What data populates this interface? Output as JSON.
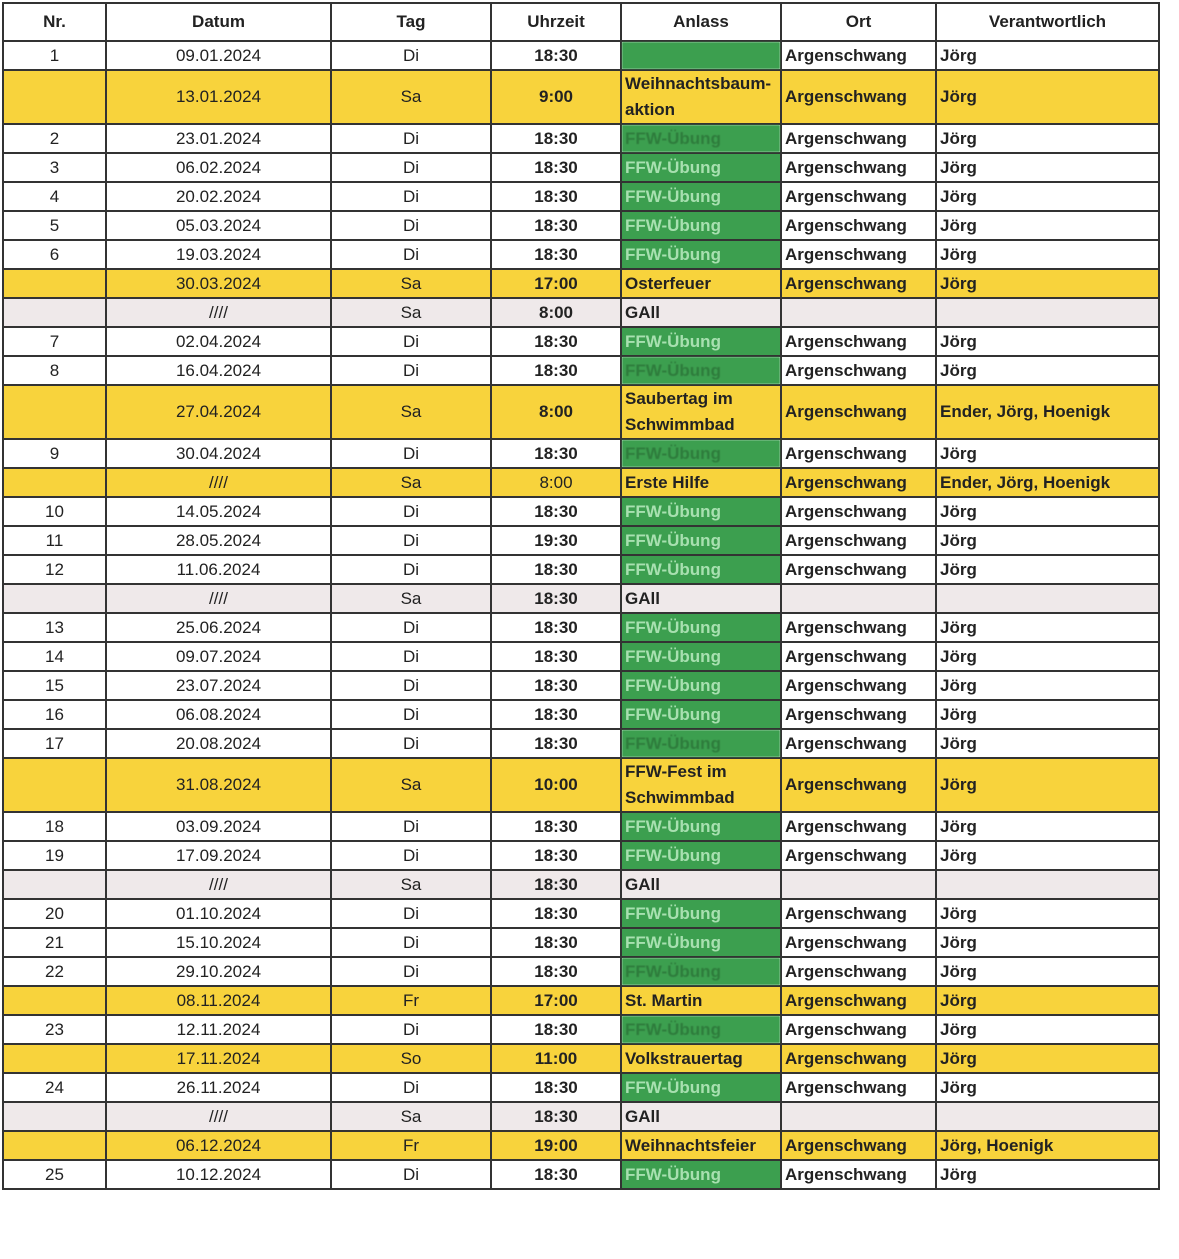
{
  "headers": [
    "Nr.",
    "Datum",
    "Tag",
    "Uhrzeit",
    "Anlass",
    "Ort",
    "Verantwortlich"
  ],
  "colors": {
    "yellow": "#f8d33c",
    "green": "#3c9f4f",
    "grey": "#efe9ea"
  },
  "rows": [
    {
      "nr": "1",
      "datum": "09.01.2024",
      "tag": "Di",
      "zeit": "18:30",
      "anlass": "",
      "ort": "Argenschwang",
      "ver": "Jörg",
      "type": "green",
      "blur": true
    },
    {
      "nr": "",
      "datum": "13.01.2024",
      "tag": "Sa",
      "zeit": "9:00",
      "anlass": "Weihnachtsbaum- aktion",
      "ort": "Argenschwang",
      "ver": "Jörg",
      "type": "yellow",
      "tall": true
    },
    {
      "nr": "2",
      "datum": "23.01.2024",
      "tag": "Di",
      "zeit": "18:30",
      "anlass": "FFW-Übung",
      "ort": "Argenschwang",
      "ver": "Jörg",
      "type": "green",
      "blur": true
    },
    {
      "nr": "3",
      "datum": "06.02.2024",
      "tag": "Di",
      "zeit": "18:30",
      "anlass": "FFW-Übung",
      "ort": "Argenschwang",
      "ver": "Jörg",
      "type": "green"
    },
    {
      "nr": "4",
      "datum": "20.02.2024",
      "tag": "Di",
      "zeit": "18:30",
      "anlass": "FFW-Übung",
      "ort": "Argenschwang",
      "ver": "Jörg",
      "type": "green"
    },
    {
      "nr": "5",
      "datum": "05.03.2024",
      "tag": "Di",
      "zeit": "18:30",
      "anlass": "FFW-Übung",
      "ort": "Argenschwang",
      "ver": "Jörg",
      "type": "green"
    },
    {
      "nr": "6",
      "datum": "19.03.2024",
      "tag": "Di",
      "zeit": "18:30",
      "anlass": "FFW-Übung",
      "ort": "Argenschwang",
      "ver": "Jörg",
      "type": "green"
    },
    {
      "nr": "",
      "datum": "30.03.2024",
      "tag": "Sa",
      "zeit": "17:00",
      "anlass": "Osterfeuer",
      "ort": "Argenschwang",
      "ver": "Jörg",
      "type": "yellow"
    },
    {
      "nr": "",
      "datum": "////",
      "tag": "Sa",
      "zeit": "8:00",
      "anlass": "GAll",
      "ort": "",
      "ver": "",
      "type": "grey"
    },
    {
      "nr": "7",
      "datum": "02.04.2024",
      "tag": "Di",
      "zeit": "18:30",
      "anlass": "FFW-Übung",
      "ort": "Argenschwang",
      "ver": "Jörg",
      "type": "green"
    },
    {
      "nr": "8",
      "datum": "16.04.2024",
      "tag": "Di",
      "zeit": "18:30",
      "anlass": "FFW-Übung",
      "ort": "Argenschwang",
      "ver": "Jörg",
      "type": "green",
      "blur": true
    },
    {
      "nr": "",
      "datum": "27.04.2024",
      "tag": "Sa",
      "zeit": "8:00",
      "anlass": "Saubertag im Schwimmbad",
      "ort": "Argenschwang",
      "ver": "Ender, Jörg, Hoenigk",
      "type": "yellow",
      "tall": true
    },
    {
      "nr": "9",
      "datum": "30.04.2024",
      "tag": "Di",
      "zeit": "18:30",
      "anlass": "FFW-Übung",
      "ort": "Argenschwang",
      "ver": "Jörg",
      "type": "green",
      "blur": true
    },
    {
      "nr": "",
      "datum": "////",
      "tag": "Sa",
      "zeit": "8:00",
      "anlass": "Erste Hilfe",
      "ort": "Argenschwang",
      "ver": "Ender, Jörg, Hoenigk",
      "type": "yellow",
      "plain": true
    },
    {
      "nr": "10",
      "datum": "14.05.2024",
      "tag": "Di",
      "zeit": "18:30",
      "anlass": "FFW-Übung",
      "ort": "Argenschwang",
      "ver": "Jörg",
      "type": "green"
    },
    {
      "nr": "11",
      "datum": "28.05.2024",
      "tag": "Di",
      "zeit": "19:30",
      "anlass": "FFW-Übung",
      "ort": "Argenschwang",
      "ver": "Jörg",
      "type": "green"
    },
    {
      "nr": "12",
      "datum": "11.06.2024",
      "tag": "Di",
      "zeit": "18:30",
      "anlass": "FFW-Übung",
      "ort": "Argenschwang",
      "ver": "Jörg",
      "type": "green"
    },
    {
      "nr": "",
      "datum": "////",
      "tag": "Sa",
      "zeit": "18:30",
      "anlass": "GAll",
      "ort": "",
      "ver": "",
      "type": "grey"
    },
    {
      "nr": "13",
      "datum": "25.06.2024",
      "tag": "Di",
      "zeit": "18:30",
      "anlass": "FFW-Übung",
      "ort": "Argenschwang",
      "ver": "Jörg",
      "type": "green"
    },
    {
      "nr": "14",
      "datum": "09.07.2024",
      "tag": "Di",
      "zeit": "18:30",
      "anlass": "FFW-Übung",
      "ort": "Argenschwang",
      "ver": "Jörg",
      "type": "green"
    },
    {
      "nr": "15",
      "datum": "23.07.2024",
      "tag": "Di",
      "zeit": "18:30",
      "anlass": "FFW-Übung",
      "ort": "Argenschwang",
      "ver": "Jörg",
      "type": "green"
    },
    {
      "nr": "16",
      "datum": "06.08.2024",
      "tag": "Di",
      "zeit": "18:30",
      "anlass": "FFW-Übung",
      "ort": "Argenschwang",
      "ver": "Jörg",
      "type": "green"
    },
    {
      "nr": "17",
      "datum": "20.08.2024",
      "tag": "Di",
      "zeit": "18:30",
      "anlass": "FFW-Übung",
      "ort": "Argenschwang",
      "ver": "Jörg",
      "type": "green",
      "blur": true
    },
    {
      "nr": "",
      "datum": "31.08.2024",
      "tag": "Sa",
      "zeit": "10:00",
      "anlass": "FFW-Fest im Schwimmbad",
      "ort": "Argenschwang",
      "ver": "Jörg",
      "type": "yellow",
      "tall": true
    },
    {
      "nr": "18",
      "datum": "03.09.2024",
      "tag": "Di",
      "zeit": "18:30",
      "anlass": "FFW-Übung",
      "ort": "Argenschwang",
      "ver": "Jörg",
      "type": "green"
    },
    {
      "nr": "19",
      "datum": "17.09.2024",
      "tag": "Di",
      "zeit": "18:30",
      "anlass": "FFW-Übung",
      "ort": "Argenschwang",
      "ver": "Jörg",
      "type": "green"
    },
    {
      "nr": "",
      "datum": "////",
      "tag": "Sa",
      "zeit": "18:30",
      "anlass": "GAll",
      "ort": "",
      "ver": "",
      "type": "grey"
    },
    {
      "nr": "20",
      "datum": "01.10.2024",
      "tag": "Di",
      "zeit": "18:30",
      "anlass": "FFW-Übung",
      "ort": "Argenschwang",
      "ver": "Jörg",
      "type": "green"
    },
    {
      "nr": "21",
      "datum": "15.10.2024",
      "tag": "Di",
      "zeit": "18:30",
      "anlass": "FFW-Übung",
      "ort": "Argenschwang",
      "ver": "Jörg",
      "type": "green"
    },
    {
      "nr": "22",
      "datum": "29.10.2024",
      "tag": "Di",
      "zeit": "18:30",
      "anlass": "FFW-Übung",
      "ort": "Argenschwang",
      "ver": "Jörg",
      "type": "green",
      "blur": true
    },
    {
      "nr": "",
      "datum": "08.11.2024",
      "tag": "Fr",
      "zeit": "17:00",
      "anlass": "St. Martin",
      "ort": "Argenschwang",
      "ver": "Jörg",
      "type": "yellow"
    },
    {
      "nr": "23",
      "datum": "12.11.2024",
      "tag": "Di",
      "zeit": "18:30",
      "anlass": "FFW-Übung",
      "ort": "Argenschwang",
      "ver": "Jörg",
      "type": "green",
      "blur": true
    },
    {
      "nr": "",
      "datum": "17.11.2024",
      "tag": "So",
      "zeit": "11:00",
      "anlass": "Volkstrauertag",
      "ort": "Argenschwang",
      "ver": "Jörg",
      "type": "yellow"
    },
    {
      "nr": "24",
      "datum": "26.11.2024",
      "tag": "Di",
      "zeit": "18:30",
      "anlass": "FFW-Übung",
      "ort": "Argenschwang",
      "ver": "Jörg",
      "type": "green"
    },
    {
      "nr": "",
      "datum": "////",
      "tag": "Sa",
      "zeit": "18:30",
      "anlass": "GAll",
      "ort": "",
      "ver": "",
      "type": "grey"
    },
    {
      "nr": "",
      "datum": "06.12.2024",
      "tag": "Fr",
      "zeit": "19:00",
      "anlass": "Weihnachtsfeier",
      "ort": "Argenschwang",
      "ver": "Jörg, Hoenigk",
      "type": "yellow"
    },
    {
      "nr": "25",
      "datum": "10.12.2024",
      "tag": "Di",
      "zeit": "18:30",
      "anlass": "FFW-Übung",
      "ort": "Argenschwang",
      "ver": "Jörg",
      "type": "green"
    }
  ]
}
